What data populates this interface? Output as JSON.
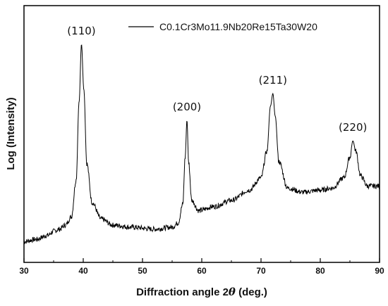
{
  "chart_data": {
    "type": "line",
    "xlabel_prefix": "Diffraction angle 2",
    "xlabel_symbol": "θ",
    "xlabel_suffix": " (deg.)",
    "ylabel": "Log (Intensity)",
    "xlim": [
      30,
      90
    ],
    "x_ticks": [
      "30",
      "40",
      "50",
      "60",
      "70",
      "80",
      "90"
    ],
    "y_ticks_shown": false,
    "grid": false,
    "legend_position": "top-right",
    "series": [
      {
        "name": "C0.1Cr3Mo11.9Nb20Re15Ta30W20",
        "color": "#000000",
        "x": [
          30,
          32,
          34,
          35,
          36,
          37,
          38,
          38.8,
          39.3,
          39.7,
          40.1,
          40.6,
          41.5,
          43,
          45,
          48,
          52,
          55,
          56,
          56.8,
          57.2,
          57.5,
          57.8,
          58.3,
          59.5,
          62,
          65,
          68,
          70,
          71,
          71.6,
          72,
          72.4,
          73,
          74.5,
          77,
          80,
          82,
          84,
          85,
          85.5,
          86,
          86.8,
          88,
          90
        ],
        "y": [
          0.04,
          0.05,
          0.07,
          0.09,
          0.1,
          0.12,
          0.16,
          0.34,
          0.72,
          1,
          0.78,
          0.42,
          0.23,
          0.15,
          0.12,
          0.11,
          0.1,
          0.11,
          0.13,
          0.22,
          0.45,
          0.63,
          0.42,
          0.24,
          0.19,
          0.21,
          0.24,
          0.29,
          0.35,
          0.48,
          0.7,
          0.76,
          0.65,
          0.43,
          0.3,
          0.28,
          0.29,
          0.3,
          0.35,
          0.45,
          0.53,
          0.48,
          0.36,
          0.31,
          0.31
        ]
      }
    ],
    "annotations": [
      {
        "text": "(110)",
        "x": 39.7
      },
      {
        "text": "(200)",
        "x": 57.5
      },
      {
        "text": "(211)",
        "x": 72
      },
      {
        "text": "(220)",
        "x": 85.5
      }
    ]
  }
}
